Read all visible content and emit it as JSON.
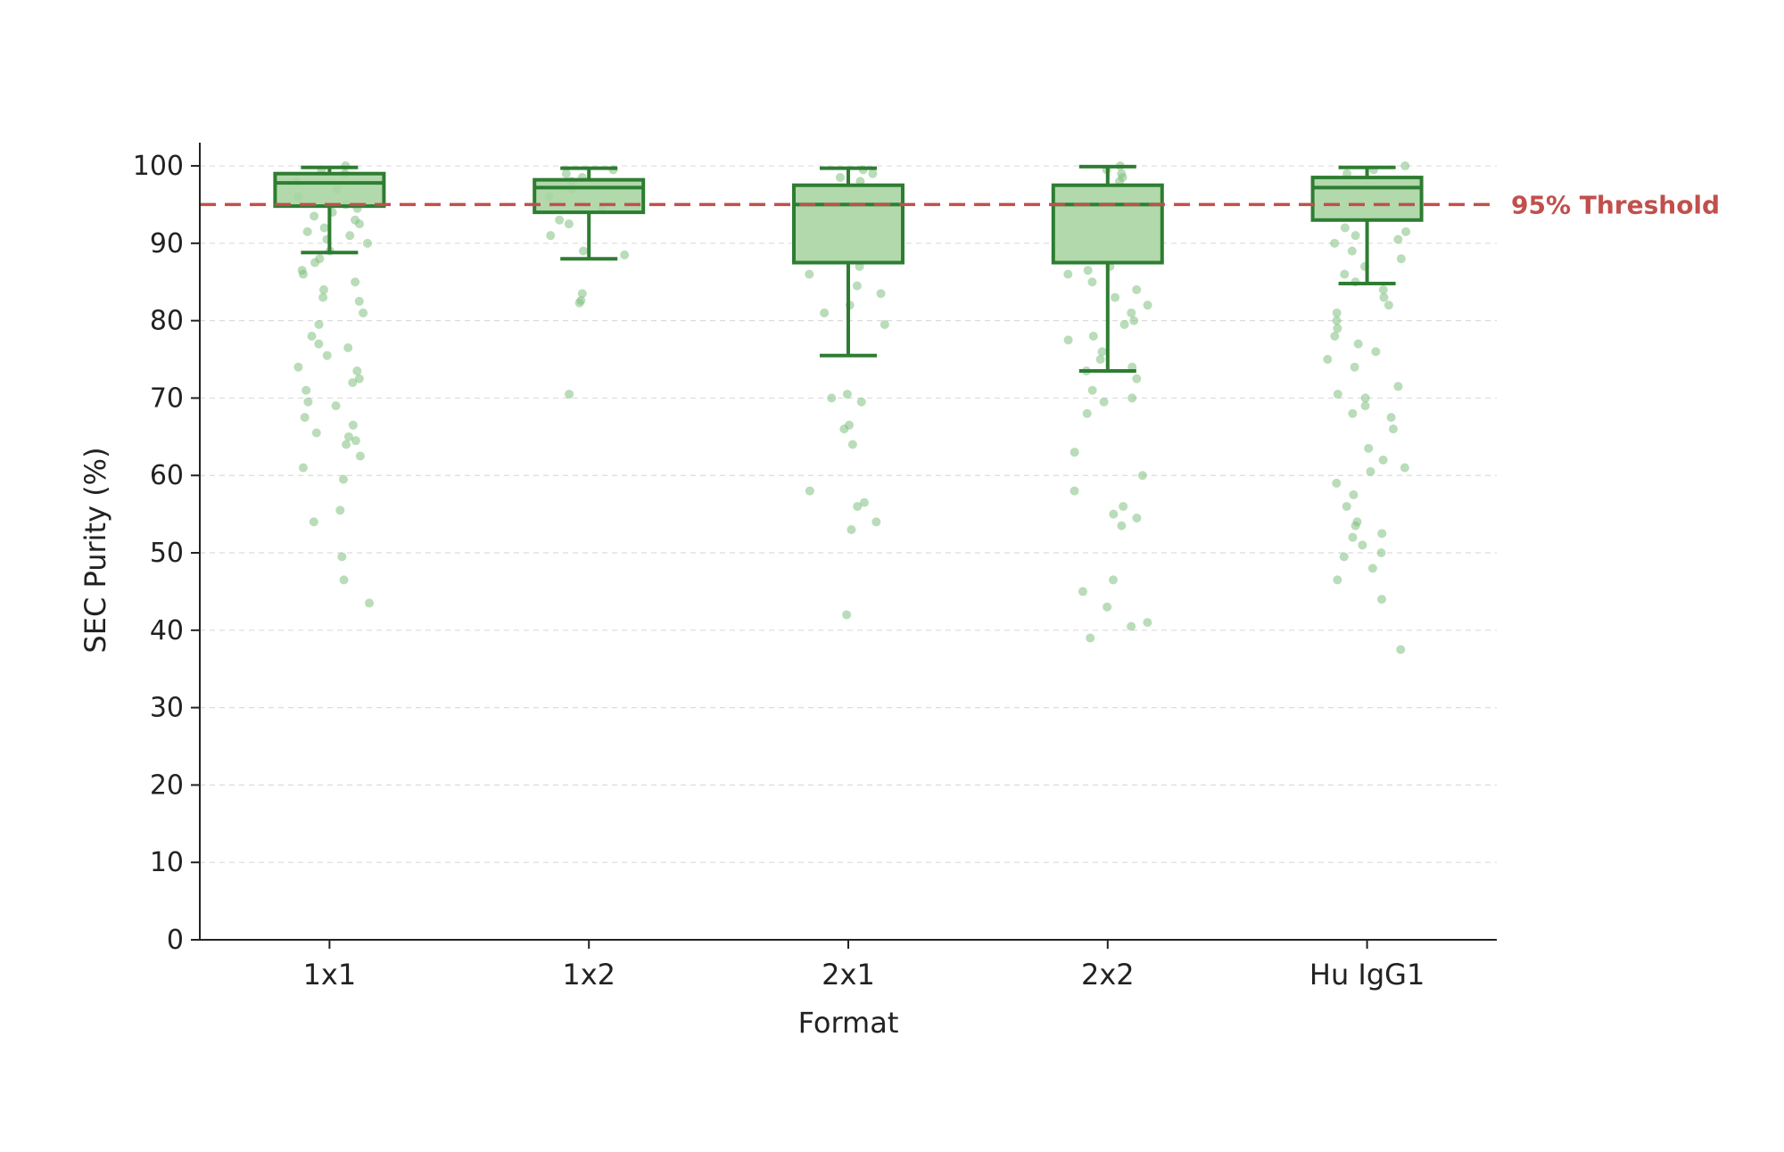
{
  "chart_data": {
    "type": "box",
    "xlabel": "Format",
    "ylabel": "SEC Purity (%)",
    "ylim": [
      0,
      103
    ],
    "yticks": [
      0,
      10,
      20,
      30,
      40,
      50,
      60,
      70,
      80,
      90,
      100
    ],
    "grid": "horizontal dashed",
    "categories": [
      "1x1",
      "1x2",
      "2x1",
      "2x2",
      "Hu IgG1"
    ],
    "threshold": {
      "value": 95,
      "label": "95% Threshold",
      "color": "#c0504d"
    },
    "colors": {
      "box_fill": "#a8d5a2",
      "box_edge": "#2e7d32",
      "points": "#7fbf7f"
    },
    "boxes": [
      {
        "category": "1x1",
        "whisker_low": 88.8,
        "q1": 94.8,
        "median": 97.8,
        "q3": 99.0,
        "whisker_high": 99.8,
        "points": [
          49.5,
          54,
          55.5,
          43.5,
          46.5,
          59.5,
          61,
          62.5,
          64,
          64.5,
          65,
          65.5,
          66.5,
          67.5,
          69,
          69.5,
          71,
          72,
          72.5,
          73.5,
          74,
          75.5,
          76.5,
          77,
          78,
          79.5,
          81,
          82.5,
          83,
          84,
          85,
          86,
          86.5,
          87.5,
          88,
          89,
          90,
          90.5,
          91,
          91.5,
          92,
          92.5,
          93,
          93.5,
          94,
          94.5,
          95,
          96,
          97,
          98,
          99,
          99.5,
          100
        ]
      },
      {
        "category": "1x2",
        "whisker_low": 88.0,
        "q1": 94.0,
        "median": 97.2,
        "q3": 98.2,
        "whisker_high": 99.7,
        "points": [
          70.5,
          82.3,
          82.6,
          83.5,
          88.5,
          89,
          91,
          92.5,
          93,
          94.5,
          96,
          97,
          98,
          98.5,
          99,
          99.5
        ]
      },
      {
        "category": "2x1",
        "whisker_low": 75.5,
        "q1": 87.5,
        "median": 95.0,
        "q3": 97.5,
        "whisker_high": 99.7,
        "points": [
          42,
          53,
          54,
          56,
          56.5,
          58,
          64,
          66,
          66.5,
          69.5,
          70,
          70.5,
          79.5,
          81,
          82,
          83.5,
          84.5,
          86,
          87,
          98,
          98.5,
          99,
          99.5
        ]
      },
      {
        "category": "2x2",
        "whisker_low": 73.5,
        "q1": 87.5,
        "median": 95.0,
        "q3": 97.5,
        "whisker_high": 99.9,
        "points": [
          39,
          40.5,
          41,
          43,
          45,
          46.5,
          53.5,
          54.5,
          55,
          56,
          58,
          60,
          63,
          68,
          69.5,
          70,
          71,
          72.5,
          73.5,
          74,
          75,
          76,
          77.5,
          78,
          79.5,
          80,
          81,
          82,
          83,
          84,
          85,
          86,
          86.5,
          87,
          98,
          98.5,
          99,
          99.5,
          100
        ]
      },
      {
        "category": "Hu IgG1",
        "whisker_low": 84.8,
        "q1": 93.0,
        "median": 97.2,
        "q3": 98.5,
        "whisker_high": 99.8,
        "points": [
          37.5,
          44,
          46.5,
          48,
          49.5,
          50,
          51,
          52,
          52.5,
          53.5,
          54,
          56,
          57.5,
          59,
          60.5,
          61,
          62,
          63.5,
          66,
          67.5,
          68,
          69,
          70,
          70.5,
          71.5,
          74,
          75,
          76,
          77,
          78,
          79,
          80,
          81,
          82,
          83,
          84,
          85,
          86,
          87,
          88,
          89,
          90,
          90.5,
          91,
          91.5,
          92,
          99,
          99.5,
          100
        ]
      }
    ]
  }
}
